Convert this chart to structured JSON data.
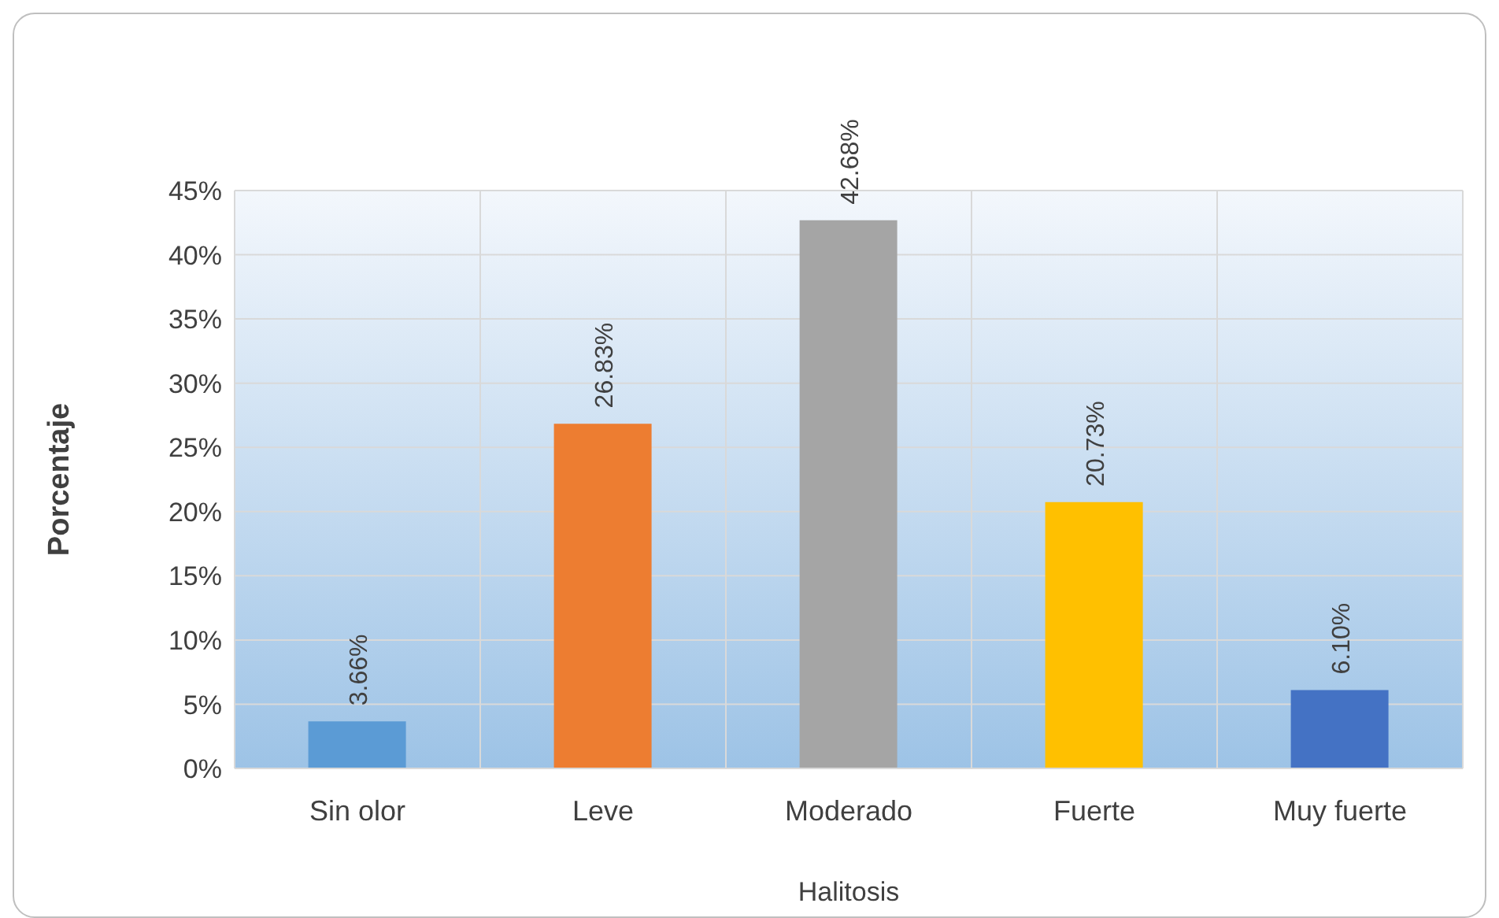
{
  "chart_data": {
    "type": "bar",
    "xlabel": "Halitosis",
    "ylabel": "Porcentaje",
    "categories": [
      "Sin olor",
      "Leve",
      "Moderado",
      "Fuerte",
      "Muy fuerte"
    ],
    "values": [
      3.66,
      26.83,
      42.68,
      20.73,
      6.1
    ],
    "colors": [
      "#5b9bd5",
      "#ed7d31",
      "#a5a5a5",
      "#ffc000",
      "#4472c4"
    ],
    "value_labels": [
      "3.66%",
      "26.83%",
      "42.68%",
      "20.73%",
      "6.10%"
    ],
    "ylim": [
      0,
      45
    ],
    "yticks": [
      {
        "value": 0,
        "label": "0%"
      },
      {
        "value": 5,
        "label": "5%"
      },
      {
        "value": 10,
        "label": "10%"
      },
      {
        "value": 15,
        "label": "15%"
      },
      {
        "value": 20,
        "label": "20%"
      },
      {
        "value": 25,
        "label": "25%"
      },
      {
        "value": 30,
        "label": "30%"
      },
      {
        "value": 35,
        "label": "35%"
      },
      {
        "value": 40,
        "label": "40%"
      },
      {
        "value": 45,
        "label": "45%"
      }
    ],
    "grid": true
  }
}
